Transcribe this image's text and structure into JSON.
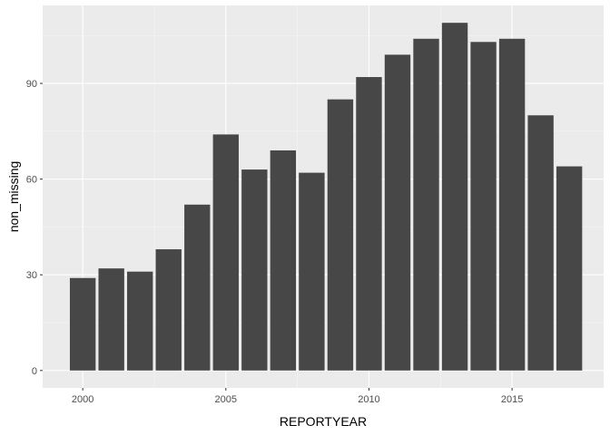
{
  "chart_data": {
    "type": "bar",
    "title": "",
    "xlabel": "REPORTYEAR",
    "ylabel": "non_missing",
    "x": [
      2000,
      2001,
      2002,
      2003,
      2004,
      2005,
      2006,
      2007,
      2008,
      2009,
      2010,
      2011,
      2012,
      2013,
      2014,
      2015,
      2016,
      2017
    ],
    "values": [
      29,
      32,
      31,
      38,
      52,
      74,
      63,
      69,
      62,
      85,
      92,
      99,
      104,
      109,
      103,
      104,
      80,
      64
    ],
    "xlim": [
      1998.6,
      2018.2
    ],
    "ylim": [
      -5.45,
      114.45
    ],
    "x_ticks": [
      2000,
      2005,
      2010,
      2015
    ],
    "x_tick_labels": [
      "2000",
      "2005",
      "2010",
      "2015"
    ],
    "y_ticks": [
      0,
      30,
      60,
      90
    ],
    "y_tick_labels": [
      "0",
      "30",
      "60",
      "90"
    ],
    "grid": true,
    "legend": "none",
    "colors": {
      "panel_background": "#ebebeb",
      "grid_major": "#ffffff",
      "grid_minor": "#f5f5f5",
      "bar_fill": "#474747",
      "tick_text": "#4d4d4d",
      "tick_mark": "#333333"
    }
  }
}
